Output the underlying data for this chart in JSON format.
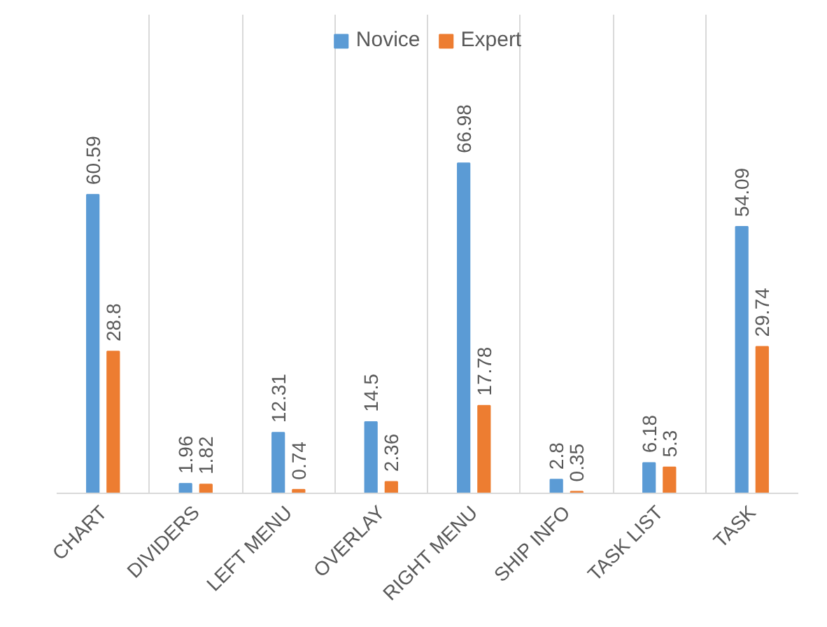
{
  "chart_data": {
    "type": "bar",
    "categories": [
      "CHART",
      "DIVIDERS",
      "LEFT MENU",
      "OVERLAY",
      "RIGHT MENU",
      "SHIP INFO",
      "TASK LIST",
      "TASK"
    ],
    "series": [
      {
        "name": "Novice",
        "color": "#5b9bd5",
        "values": [
          60.59,
          1.96,
          12.31,
          14.5,
          66.98,
          2.8,
          6.18,
          54.09
        ]
      },
      {
        "name": "Expert",
        "color": "#ed7d31",
        "values": [
          28.8,
          1.82,
          0.74,
          2.36,
          17.78,
          0.35,
          5.3,
          29.74
        ]
      }
    ],
    "data_labels": true,
    "legend": "top",
    "grid": "x",
    "tick_labels": "x"
  }
}
